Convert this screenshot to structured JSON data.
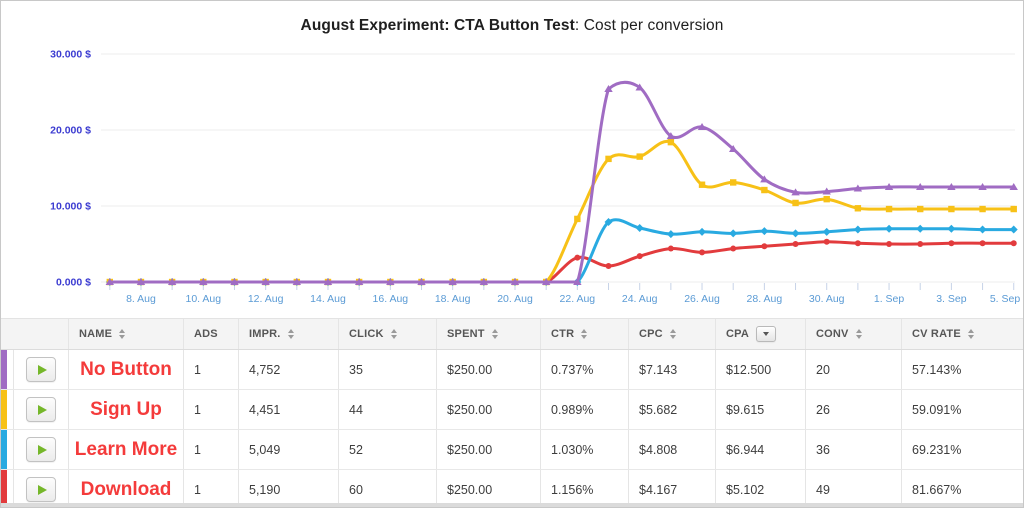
{
  "chart_data": {
    "type": "line",
    "title_bold": "August Experiment: CTA Button Test",
    "title_rest": ": Cost per conversion",
    "unit": "$",
    "x": [
      "7. Aug",
      "8. Aug",
      "9. Aug",
      "10. Aug",
      "11. Aug",
      "12. Aug",
      "13. Aug",
      "14. Aug",
      "15. Aug",
      "16. Aug",
      "17. Aug",
      "18. Aug",
      "19. Aug",
      "20. Aug",
      "21. Aug",
      "22. Aug",
      "23. Aug",
      "24. Aug",
      "25. Aug",
      "26. Aug",
      "27. Aug",
      "28. Aug",
      "29. Aug",
      "30. Aug",
      "31. Aug",
      "1. Sep",
      "2. Sep",
      "3. Sep",
      "4. Sep",
      "5. Sep"
    ],
    "x_labels_shown": [
      "8. Aug",
      "10. Aug",
      "12. Aug",
      "14. Aug",
      "16. Aug",
      "18. Aug",
      "20. Aug",
      "22. Aug",
      "24. Aug",
      "26. Aug",
      "28. Aug",
      "30. Aug",
      "1. Sep",
      "3. Sep",
      "5. Sep"
    ],
    "y_ticks": [
      {
        "value": 0,
        "label": "0.000 $"
      },
      {
        "value": 10,
        "label": "10.000 $"
      },
      {
        "value": 20,
        "label": "20.000 $"
      },
      {
        "value": 30,
        "label": "30.000 $"
      }
    ],
    "ylim": [
      0,
      31.5
    ],
    "grid": "horizontal",
    "legend_position": "none",
    "series": [
      {
        "name": "Download",
        "color": "#e23b3d",
        "marker": "circle",
        "values": [
          0,
          0,
          0,
          0,
          0,
          0,
          0,
          0,
          0,
          0,
          0,
          0,
          0,
          0,
          0,
          3.2,
          2.1,
          3.4,
          4.4,
          3.9,
          4.4,
          4.7,
          5.0,
          5.3,
          5.1,
          5.0,
          5.0,
          5.1,
          5.1,
          5.1
        ]
      },
      {
        "name": "Learn More",
        "color": "#29aae1",
        "marker": "diamond",
        "values": [
          0,
          0,
          0,
          0,
          0,
          0,
          0,
          0,
          0,
          0,
          0,
          0,
          0,
          0,
          0,
          0,
          7.9,
          7.1,
          6.3,
          6.6,
          6.4,
          6.7,
          6.4,
          6.6,
          6.9,
          7.0,
          7.0,
          7.0,
          6.9,
          6.9
        ]
      },
      {
        "name": "Sign Up",
        "color": "#f7c117",
        "marker": "square",
        "values": [
          0,
          0,
          0,
          0,
          0,
          0,
          0,
          0,
          0,
          0,
          0,
          0,
          0,
          0,
          0,
          8.3,
          16.2,
          16.5,
          18.4,
          12.8,
          13.1,
          12.1,
          10.4,
          10.9,
          9.7,
          9.6,
          9.6,
          9.6,
          9.6,
          9.6
        ]
      },
      {
        "name": "No Button",
        "color": "#a06cc3",
        "marker": "triangle",
        "values": [
          0,
          0,
          0,
          0,
          0,
          0,
          0,
          0,
          0,
          0,
          0,
          0,
          0,
          0,
          0,
          0,
          25.4,
          25.6,
          19.2,
          20.4,
          17.5,
          13.5,
          11.8,
          11.9,
          12.3,
          12.5,
          12.5,
          12.5,
          12.5,
          12.5
        ]
      }
    ],
    "colors": {
      "y_axis_label": "#3c3cd1",
      "x_axis_label": "#5b9bd5",
      "gridline": "#ededed",
      "tick": "#c7d3e8"
    }
  },
  "table": {
    "columns": [
      {
        "key": "name",
        "label": "NAME",
        "sort": "both"
      },
      {
        "key": "ads",
        "label": "ADS",
        "sort": "none"
      },
      {
        "key": "impr",
        "label": "IMPR.",
        "sort": "both"
      },
      {
        "key": "click",
        "label": "CLICK",
        "sort": "both"
      },
      {
        "key": "spent",
        "label": "SPENT",
        "sort": "both"
      },
      {
        "key": "ctr",
        "label": "CTR",
        "sort": "both"
      },
      {
        "key": "cpc",
        "label": "CPC",
        "sort": "both"
      },
      {
        "key": "cpa",
        "label": "CPA",
        "sort": "active"
      },
      {
        "key": "conv",
        "label": "CONV",
        "sort": "both"
      },
      {
        "key": "cvrate",
        "label": "CV RATE",
        "sort": "both"
      }
    ],
    "rows": [
      {
        "color": "#a06cc3",
        "name": "No Button",
        "ads": "1",
        "impr": "4,752",
        "click": "35",
        "spent": "$250.00",
        "ctr": "0.737%",
        "cpc": "$7.143",
        "cpa": "$12.500",
        "conv": "20",
        "cvrate": "57.143%"
      },
      {
        "color": "#f7c117",
        "name": "Sign Up",
        "ads": "1",
        "impr": "4,451",
        "click": "44",
        "spent": "$250.00",
        "ctr": "0.989%",
        "cpc": "$5.682",
        "cpa": "$9.615",
        "conv": "26",
        "cvrate": "59.091%"
      },
      {
        "color": "#29aae1",
        "name": "Learn More",
        "ads": "1",
        "impr": "5,049",
        "click": "52",
        "spent": "$250.00",
        "ctr": "1.030%",
        "cpc": "$4.808",
        "cpa": "$6.944",
        "conv": "36",
        "cvrate": "69.231%"
      },
      {
        "color": "#e23b3d",
        "name": "Download",
        "ads": "1",
        "impr": "5,190",
        "click": "60",
        "spent": "$250.00",
        "ctr": "1.156%",
        "cpc": "$4.167",
        "cpa": "$5.102",
        "conv": "49",
        "cvrate": "81.667%"
      }
    ],
    "icons": {
      "play": "play-icon",
      "sort_both": "sort-up-down-icon",
      "sort_active": "sort-desc-icon"
    },
    "play_color": "#75b72a"
  }
}
